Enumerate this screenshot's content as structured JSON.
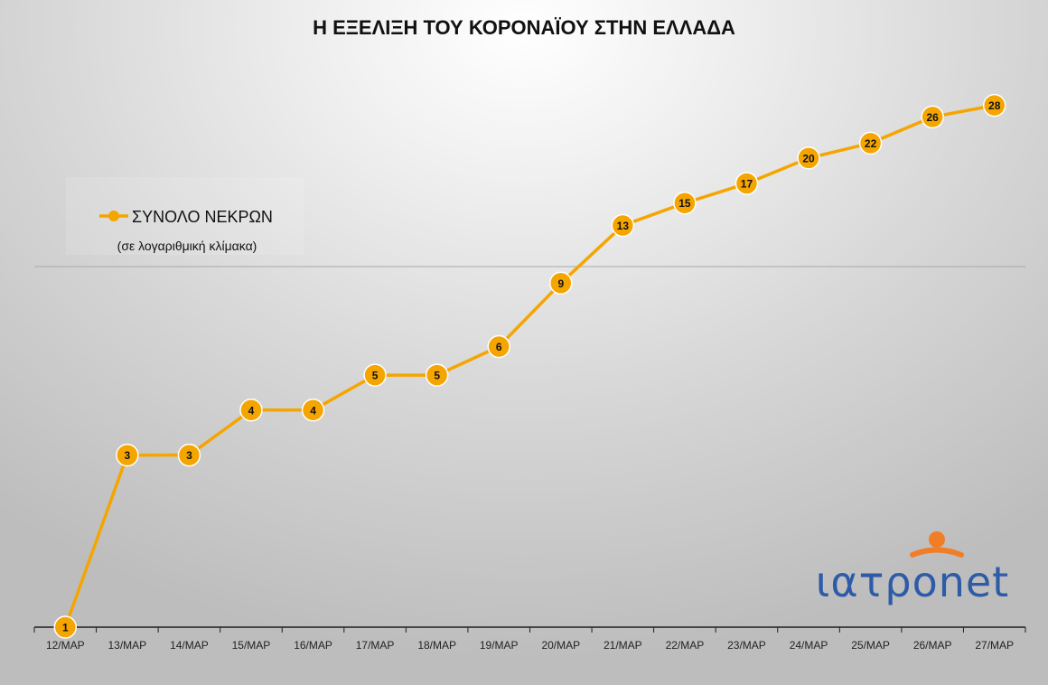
{
  "colors": {
    "series": "#F5A500",
    "axis": "#1f1f1f",
    "gridline": "#a8a8a8",
    "logo_blue": "#2E5BA8",
    "logo_orange": "#F07E26"
  },
  "logo": {
    "text": "ιατρonet"
  },
  "chart_data": {
    "type": "line",
    "title": "Η ΕΞΕΛΙΞΗ ΤΟΥ ΚΟΡΟΝΑΪΟΥ ΣΤΗΝ ΕΛΛΑΔΑ",
    "yscale": "log",
    "ylim": [
      1,
      100
    ],
    "grid": {
      "y_major": true,
      "x": false
    },
    "legend": {
      "position": "top-left",
      "entries": [
        "ΣΥΝΟΛΟ ΝΕΚΡΩΝ"
      ],
      "note": "(σε λογαριθμική κλίμακα)"
    },
    "categories": [
      "12/ΜΑΡ",
      "13/ΜΑΡ",
      "14/ΜΑΡ",
      "15/ΜΑΡ",
      "16/ΜΑΡ",
      "17/ΜΑΡ",
      "18/ΜΑΡ",
      "19/ΜΑΡ",
      "20/ΜΑΡ",
      "21/ΜΑΡ",
      "22/ΜΑΡ",
      "23/ΜΑΡ",
      "24/ΜΑΡ",
      "25/ΜΑΡ",
      "26/ΜΑΡ",
      "27/ΜΑΡ"
    ],
    "series": [
      {
        "name": "ΣΥΝΟΛΟ ΝΕΚΡΩΝ",
        "values": [
          1,
          3,
          3,
          4,
          4,
          5,
          5,
          6,
          9,
          13,
          15,
          17,
          20,
          22,
          26,
          28
        ]
      }
    ]
  }
}
